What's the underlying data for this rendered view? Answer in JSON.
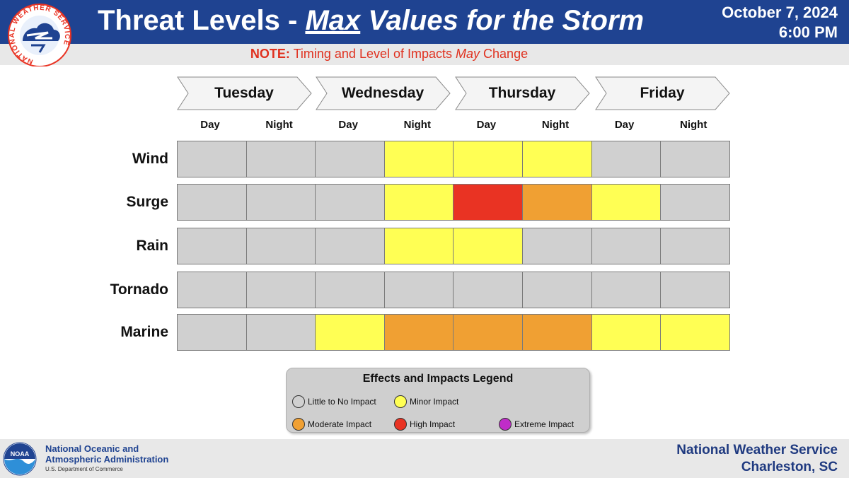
{
  "header": {
    "title_prefix": "Threat Levels - ",
    "title_max": "Max",
    "title_rest": " Values for the Storm",
    "date": "October 7, 2024",
    "time": "6:00 PM",
    "logo_text": "NATIONAL WEATHER SERVICE"
  },
  "note": {
    "label": "NOTE:",
    "text_before": " Timing and Level of Impacts ",
    "text_may": "May",
    "text_after": " Change"
  },
  "days": [
    "Tuesday",
    "Wednesday",
    "Thursday",
    "Friday"
  ],
  "periods": [
    "Day",
    "Night",
    "Day",
    "Night",
    "Day",
    "Night",
    "Day",
    "Night"
  ],
  "hazards": [
    {
      "name": "Wind",
      "levels": [
        "none",
        "none",
        "none",
        "minor",
        "minor",
        "minor",
        "none",
        "none"
      ]
    },
    {
      "name": "Surge",
      "levels": [
        "none",
        "none",
        "none",
        "minor",
        "high",
        "moderate",
        "minor",
        "none"
      ]
    },
    {
      "name": "Rain",
      "levels": [
        "none",
        "none",
        "none",
        "minor",
        "minor",
        "none",
        "none",
        "none"
      ]
    },
    {
      "name": "Tornado",
      "levels": [
        "none",
        "none",
        "none",
        "none",
        "none",
        "none",
        "none",
        "none"
      ]
    },
    {
      "name": "Marine",
      "levels": [
        "none",
        "none",
        "minor",
        "moderate",
        "moderate",
        "moderate",
        "minor",
        "minor"
      ]
    }
  ],
  "legend": {
    "title": "Effects and Impacts Legend",
    "items": [
      {
        "level": "none",
        "label": "Little to No Impact",
        "color": "#d0d0d0"
      },
      {
        "level": "minor",
        "label": "Minor Impact",
        "color": "#ffff54"
      },
      {
        "level": "moderate",
        "label": "Moderate Impact",
        "color": "#f0a033"
      },
      {
        "level": "high",
        "label": "High Impact",
        "color": "#e93323"
      },
      {
        "level": "extreme",
        "label": "Extreme Impact",
        "color": "#c02cc8"
      }
    ]
  },
  "footer": {
    "noaa_line1": "National Oceanic and",
    "noaa_line2": "Atmospheric Administration",
    "noaa_dept": "U.S. Department of Commerce",
    "noaa_logo_text": "NOAA",
    "office_line1": "National Weather Service",
    "office_line2": "Charleston, SC"
  }
}
